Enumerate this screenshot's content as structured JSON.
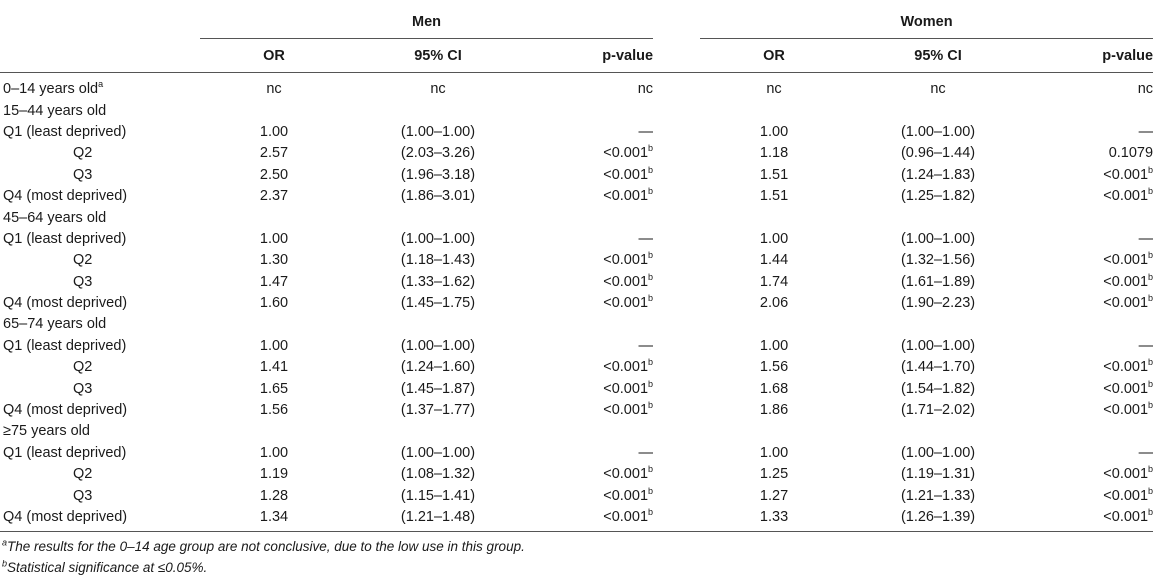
{
  "header": {
    "group_men": "Men",
    "group_women": "Women",
    "col_or": "OR",
    "col_ci": "95% CI",
    "col_p": "p-value"
  },
  "rows": [
    {
      "label": "0–14 years old",
      "label_sup": "a",
      "indent": false,
      "men": {
        "or": "nc",
        "ci": "nc",
        "p": "nc",
        "p_sup": ""
      },
      "women": {
        "or": "nc",
        "ci": "nc",
        "p": "nc",
        "p_sup": ""
      }
    },
    {
      "label": "15–44 years old",
      "label_sup": "",
      "indent": false,
      "men": {
        "or": "",
        "ci": "",
        "p": "",
        "p_sup": ""
      },
      "women": {
        "or": "",
        "ci": "",
        "p": "",
        "p_sup": ""
      }
    },
    {
      "label": "Q1 (least deprived)",
      "label_sup": "",
      "indent": false,
      "men": {
        "or": "1.00",
        "ci": "(1.00–1.00)",
        "p": "—",
        "p_sup": ""
      },
      "women": {
        "or": "1.00",
        "ci": "(1.00–1.00)",
        "p": "—",
        "p_sup": ""
      }
    },
    {
      "label": "Q2",
      "label_sup": "",
      "indent": true,
      "men": {
        "or": "2.57",
        "ci": "(2.03–3.26)",
        "p": "<0.001",
        "p_sup": "b"
      },
      "women": {
        "or": "1.18",
        "ci": "(0.96–1.44)",
        "p": "0.1079",
        "p_sup": ""
      }
    },
    {
      "label": "Q3",
      "label_sup": "",
      "indent": true,
      "men": {
        "or": "2.50",
        "ci": "(1.96–3.18)",
        "p": "<0.001",
        "p_sup": "b"
      },
      "women": {
        "or": "1.51",
        "ci": "(1.24–1.83)",
        "p": "<0.001",
        "p_sup": "b"
      }
    },
    {
      "label": "Q4 (most deprived)",
      "label_sup": "",
      "indent": false,
      "men": {
        "or": "2.37",
        "ci": "(1.86–3.01)",
        "p": "<0.001",
        "p_sup": "b"
      },
      "women": {
        "or": "1.51",
        "ci": "(1.25–1.82)",
        "p": "<0.001",
        "p_sup": "b"
      }
    },
    {
      "label": "45–64 years old",
      "label_sup": "",
      "indent": false,
      "men": {
        "or": "",
        "ci": "",
        "p": "",
        "p_sup": ""
      },
      "women": {
        "or": "",
        "ci": "",
        "p": "",
        "p_sup": ""
      }
    },
    {
      "label": "Q1 (least deprived)",
      "label_sup": "",
      "indent": false,
      "men": {
        "or": "1.00",
        "ci": "(1.00–1.00)",
        "p": "—",
        "p_sup": ""
      },
      "women": {
        "or": "1.00",
        "ci": "(1.00–1.00)",
        "p": "—",
        "p_sup": ""
      }
    },
    {
      "label": "Q2",
      "label_sup": "",
      "indent": true,
      "men": {
        "or": "1.30",
        "ci": "(1.18–1.43)",
        "p": "<0.001",
        "p_sup": "b"
      },
      "women": {
        "or": "1.44",
        "ci": "(1.32–1.56)",
        "p": "<0.001",
        "p_sup": "b"
      }
    },
    {
      "label": "Q3",
      "label_sup": "",
      "indent": true,
      "men": {
        "or": "1.47",
        "ci": "(1.33–1.62)",
        "p": "<0.001",
        "p_sup": "b"
      },
      "women": {
        "or": "1.74",
        "ci": "(1.61–1.89)",
        "p": "<0.001",
        "p_sup": "b"
      }
    },
    {
      "label": "Q4 (most deprived)",
      "label_sup": "",
      "indent": false,
      "men": {
        "or": "1.60",
        "ci": "(1.45–1.75)",
        "p": "<0.001",
        "p_sup": "b"
      },
      "women": {
        "or": "2.06",
        "ci": "(1.90–2.23)",
        "p": "<0.001",
        "p_sup": "b"
      }
    },
    {
      "label": "65–74 years old",
      "label_sup": "",
      "indent": false,
      "men": {
        "or": "",
        "ci": "",
        "p": "",
        "p_sup": ""
      },
      "women": {
        "or": "",
        "ci": "",
        "p": "",
        "p_sup": ""
      }
    },
    {
      "label": "Q1 (least deprived)",
      "label_sup": "",
      "indent": false,
      "men": {
        "or": "1.00",
        "ci": "(1.00–1.00)",
        "p": "—",
        "p_sup": ""
      },
      "women": {
        "or": "1.00",
        "ci": "(1.00–1.00)",
        "p": "—",
        "p_sup": ""
      }
    },
    {
      "label": "Q2",
      "label_sup": "",
      "indent": true,
      "men": {
        "or": "1.41",
        "ci": "(1.24–1.60)",
        "p": "<0.001",
        "p_sup": "b"
      },
      "women": {
        "or": "1.56",
        "ci": "(1.44–1.70)",
        "p": "<0.001",
        "p_sup": "b"
      }
    },
    {
      "label": "Q3",
      "label_sup": "",
      "indent": true,
      "men": {
        "or": "1.65",
        "ci": "(1.45–1.87)",
        "p": "<0.001",
        "p_sup": "b"
      },
      "women": {
        "or": "1.68",
        "ci": "(1.54–1.82)",
        "p": "<0.001",
        "p_sup": "b"
      }
    },
    {
      "label": "Q4 (most deprived)",
      "label_sup": "",
      "indent": false,
      "men": {
        "or": "1.56",
        "ci": "(1.37–1.77)",
        "p": "<0.001",
        "p_sup": "b"
      },
      "women": {
        "or": "1.86",
        "ci": "(1.71–2.02)",
        "p": "<0.001",
        "p_sup": "b"
      }
    },
    {
      "label": "≥75 years old",
      "label_sup": "",
      "indent": false,
      "men": {
        "or": "",
        "ci": "",
        "p": "",
        "p_sup": ""
      },
      "women": {
        "or": "",
        "ci": "",
        "p": "",
        "p_sup": ""
      }
    },
    {
      "label": "Q1 (least deprived)",
      "label_sup": "",
      "indent": false,
      "men": {
        "or": "1.00",
        "ci": "(1.00–1.00)",
        "p": "—",
        "p_sup": ""
      },
      "women": {
        "or": "1.00",
        "ci": "(1.00–1.00)",
        "p": "—",
        "p_sup": ""
      }
    },
    {
      "label": "Q2",
      "label_sup": "",
      "indent": true,
      "men": {
        "or": "1.19",
        "ci": "(1.08–1.32)",
        "p": "<0.001",
        "p_sup": "b"
      },
      "women": {
        "or": "1.25",
        "ci": "(1.19–1.31)",
        "p": "<0.001",
        "p_sup": "b"
      }
    },
    {
      "label": "Q3",
      "label_sup": "",
      "indent": true,
      "men": {
        "or": "1.28",
        "ci": "(1.15–1.41)",
        "p": "<0.001",
        "p_sup": "b"
      },
      "women": {
        "or": "1.27",
        "ci": "(1.21–1.33)",
        "p": "<0.001",
        "p_sup": "b"
      }
    },
    {
      "label": "Q4 (most deprived)",
      "label_sup": "",
      "indent": false,
      "men": {
        "or": "1.34",
        "ci": "(1.21–1.48)",
        "p": "<0.001",
        "p_sup": "b"
      },
      "women": {
        "or": "1.33",
        "ci": "(1.26–1.39)",
        "p": "<0.001",
        "p_sup": "b"
      }
    }
  ],
  "footnotes": [
    {
      "mark": "a",
      "text": "The results for the 0–14 age group are not conclusive, due to the low use in this group."
    },
    {
      "mark": "b",
      "text": "Statistical significance at ≤0.05%."
    }
  ]
}
